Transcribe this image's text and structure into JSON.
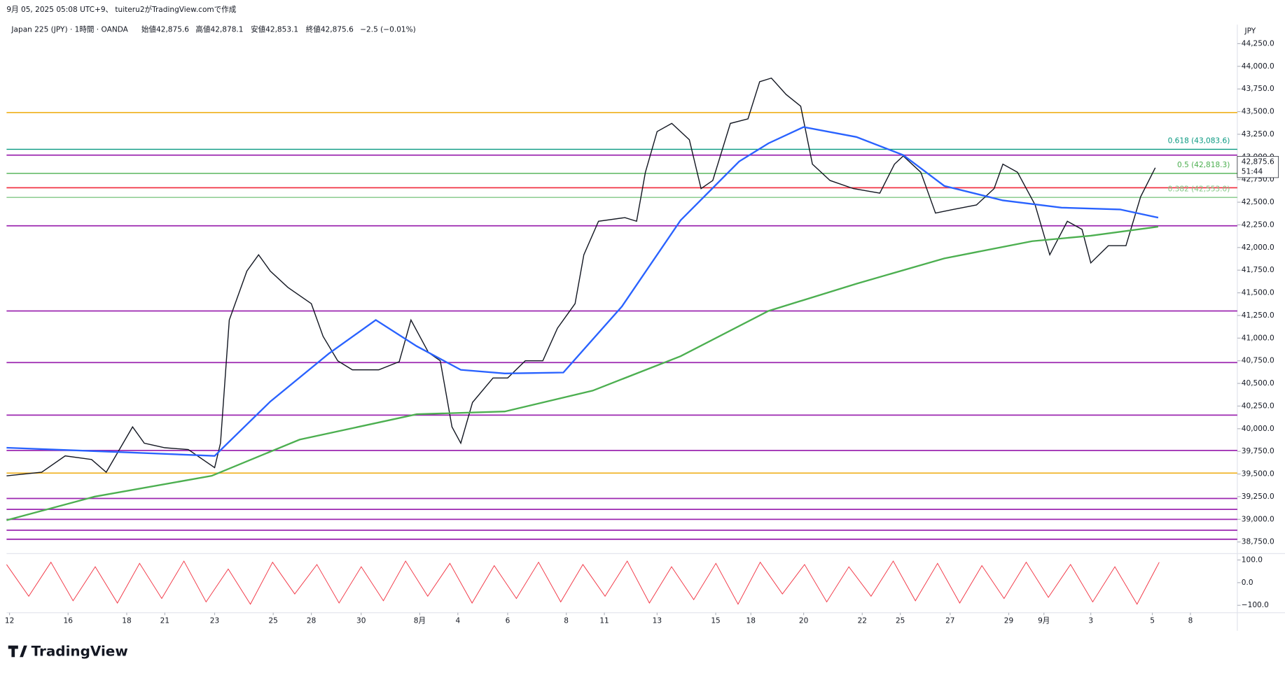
{
  "header": {
    "credit": "9月 05, 2025 05:08 UTC+9、 tuiteru2がTradingView.comで作成",
    "symbol": "Japan 225 (JPY) · 1時間 · OANDA",
    "open": "始値42,875.6",
    "high": "高値42,878.1",
    "low": "安値42,853.1",
    "close": "終値42,875.6",
    "change": "−2.5 (−0.01%)",
    "currency": "JPY",
    "brand": "TradingView"
  },
  "chart_data": [
    {
      "type": "line",
      "last_label": "42,875.6",
      "countdown": "51:44",
      "xlim": [
        0,
        42
      ],
      "ylim": [
        38640,
        44460
      ],
      "xticks": [
        {
          "value": 0.1,
          "label": "12"
        },
        {
          "value": 2.1,
          "label": "16"
        },
        {
          "value": 4.1,
          "label": "18"
        },
        {
          "value": 5.4,
          "label": "21"
        },
        {
          "value": 7.1,
          "label": "23"
        },
        {
          "value": 9.1,
          "label": "25"
        },
        {
          "value": 10.4,
          "label": "28"
        },
        {
          "value": 12.1,
          "label": "30"
        },
        {
          "value": 14.1,
          "label": "8月"
        },
        {
          "value": 15.4,
          "label": "4"
        },
        {
          "value": 17.1,
          "label": "6"
        },
        {
          "value": 19.1,
          "label": "8"
        },
        {
          "value": 20.4,
          "label": "11"
        },
        {
          "value": 22.2,
          "label": "13"
        },
        {
          "value": 24.2,
          "label": "15"
        },
        {
          "value": 25.4,
          "label": "18"
        },
        {
          "value": 27.2,
          "label": "20"
        },
        {
          "value": 29.2,
          "label": "22"
        },
        {
          "value": 30.5,
          "label": "25"
        },
        {
          "value": 32.2,
          "label": "27"
        },
        {
          "value": 34.2,
          "label": "29"
        },
        {
          "value": 35.4,
          "label": "9月"
        },
        {
          "value": 37.0,
          "label": "3"
        },
        {
          "value": 39.1,
          "label": "5"
        },
        {
          "value": 40.4,
          "label": "8"
        }
      ],
      "yticks": [
        {
          "value": 38750,
          "label": "38,750.0"
        },
        {
          "value": 39000,
          "label": "39,000.0"
        },
        {
          "value": 39250,
          "label": "39,250.0"
        },
        {
          "value": 39500,
          "label": "39,500.0"
        },
        {
          "value": 39750,
          "label": "39,750.0"
        },
        {
          "value": 40000,
          "label": "40,000.0"
        },
        {
          "value": 40250,
          "label": "40,250.0"
        },
        {
          "value": 40500,
          "label": "40,500.0"
        },
        {
          "value": 40750,
          "label": "40,750.0"
        },
        {
          "value": 41000,
          "label": "41,000.0"
        },
        {
          "value": 41250,
          "label": "41,250.0"
        },
        {
          "value": 41500,
          "label": "41,500.0"
        },
        {
          "value": 41750,
          "label": "41,750.0"
        },
        {
          "value": 42000,
          "label": "42,000.0"
        },
        {
          "value": 42250,
          "label": "42,250.0"
        },
        {
          "value": 42500,
          "label": "42,500.0"
        },
        {
          "value": 42750,
          "label": "42,750.0"
        },
        {
          "value": 43000,
          "label": "43,000.0"
        },
        {
          "value": 43250,
          "label": "43,250.0"
        },
        {
          "value": 43500,
          "label": "43,500.0"
        },
        {
          "value": 43750,
          "label": "43,750.0"
        },
        {
          "value": 44000,
          "label": "44,000.0"
        },
        {
          "value": 44250,
          "label": "44,250.0"
        }
      ],
      "series": [
        {
          "color": "#131722",
          "x": [
            0,
            1.2,
            2.0,
            2.9,
            3.4,
            4.3,
            4.7,
            5.4,
            6.2,
            7.1,
            7.3,
            7.6,
            8.2,
            8.6,
            9.0,
            9.6,
            10.4,
            10.8,
            11.3,
            11.8,
            12.7,
            13.4,
            13.8,
            14.4,
            14.8,
            15.2,
            15.5,
            15.9,
            16.6,
            17.1,
            17.7,
            18.3,
            18.8,
            19.4,
            19.7,
            20.2,
            21.1,
            21.5,
            21.8,
            22.2,
            22.7,
            23.3,
            23.7,
            24.1,
            24.7,
            25.3,
            25.7,
            26.1,
            26.6,
            27.1,
            27.5,
            28.1,
            28.9,
            29.8,
            30.3,
            30.6,
            31.2,
            31.7,
            32.3,
            33.1,
            33.7,
            34.0,
            34.5,
            35.1,
            35.6,
            36.2,
            36.7,
            37.0,
            37.6,
            38.2,
            38.7,
            39.2
          ],
          "values": [
            39480,
            39520,
            39700,
            39660,
            39520,
            40020,
            39840,
            39790,
            39770,
            39570,
            39840,
            41200,
            41740,
            41920,
            41740,
            41560,
            41380,
            41020,
            40750,
            40650,
            40650,
            40740,
            41200,
            40840,
            40750,
            40020,
            39840,
            40290,
            40560,
            40560,
            40750,
            40750,
            41110,
            41380,
            41920,
            42290,
            42330,
            42290,
            42830,
            43280,
            43370,
            43190,
            42650,
            42740,
            43370,
            43420,
            43830,
            43870,
            43690,
            43560,
            42920,
            42740,
            42650,
            42600,
            42920,
            43010,
            42830,
            42380,
            42420,
            42470,
            42650,
            42920,
            42830,
            42470,
            41920,
            42290,
            42200,
            41830,
            42020,
            42020,
            42560,
            42880
          ]
        },
        {
          "color": "#2962ff",
          "x": [
            0,
            4,
            7.1,
            9,
            11,
            12.6,
            14,
            15.5,
            17,
            19,
            21,
            23,
            25,
            26,
            27.2,
            29,
            30.6,
            32,
            34,
            36,
            38,
            39.3
          ],
          "values": [
            39790,
            39740,
            39700,
            40300,
            40830,
            41200,
            40910,
            40650,
            40610,
            40620,
            41350,
            42300,
            42950,
            43150,
            43330,
            43220,
            43020,
            42680,
            42520,
            42440,
            42420,
            42330
          ]
        },
        {
          "color": "#4caf50",
          "x": [
            0,
            3,
            7,
            10,
            14,
            17,
            20,
            23,
            26,
            29,
            32,
            35,
            37,
            39.3
          ],
          "values": [
            38990,
            39250,
            39480,
            39880,
            40160,
            40190,
            40420,
            40800,
            41300,
            41600,
            41880,
            42070,
            42130,
            42230
          ]
        }
      ],
      "levels": [
        {
          "value": 43490,
          "color": "#f0b52a"
        },
        {
          "value": 43020,
          "color": "#9c27b0"
        },
        {
          "value": 42660,
          "color": "#f23645"
        },
        {
          "value": 42240,
          "color": "#9c27b0"
        },
        {
          "value": 41300,
          "color": "#9c27b0"
        },
        {
          "value": 40730,
          "color": "#9c27b0"
        },
        {
          "value": 40150,
          "color": "#9c27b0"
        },
        {
          "value": 39760,
          "color": "#9c27b0"
        },
        {
          "value": 39510,
          "color": "#f0b52a"
        },
        {
          "value": 39230,
          "color": "#9c27b0"
        },
        {
          "value": 39110,
          "color": "#9c27b0"
        },
        {
          "value": 39000,
          "color": "#9c27b0"
        },
        {
          "value": 38880,
          "color": "#9c27b0"
        },
        {
          "value": 38780,
          "color": "#9c27b0"
        }
      ],
      "fib_levels": [
        {
          "label": "0.618 (43,083.6)",
          "value": 43083.6,
          "color": "#089981"
        },
        {
          "label": "0.5 (42,818.3)",
          "value": 42818.3,
          "color": "#4caf50"
        },
        {
          "label": "0.382 (42,553.0)",
          "value": 42553.0,
          "color": "#81c784"
        }
      ]
    },
    {
      "type": "line",
      "ylim": [
        -129,
        121
      ],
      "yticks": [
        {
          "value": 100,
          "label": "100.0"
        },
        {
          "value": 0,
          "label": "0.0"
        },
        {
          "value": -100,
          "label": "−100.0"
        }
      ],
      "color": "#f23645",
      "values": [
        80,
        -60,
        90,
        -80,
        70,
        -90,
        85,
        -70,
        95,
        -85,
        60,
        -95,
        90,
        -50,
        80,
        -90,
        70,
        -80,
        95,
        -60,
        85,
        -90,
        75,
        -70,
        90,
        -85,
        80,
        -60,
        95,
        -90,
        70,
        -75,
        85,
        -95,
        90,
        -50,
        80,
        -85,
        70,
        -60,
        95,
        -80,
        85,
        -90,
        75,
        -70,
        90,
        -65,
        80,
        -85,
        70,
        -95,
        90
      ]
    }
  ]
}
